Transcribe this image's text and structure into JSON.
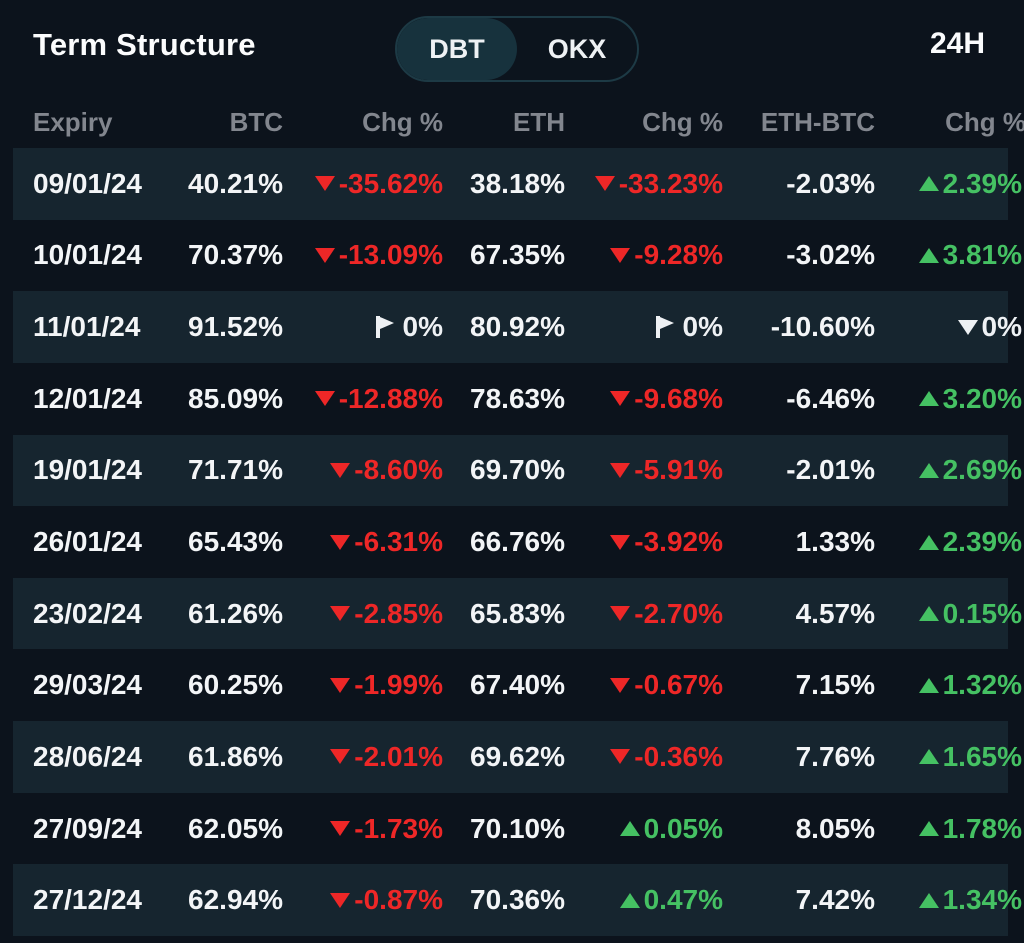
{
  "header": {
    "title": "Term Structure",
    "toggle": {
      "options": [
        "DBT",
        "OKX"
      ],
      "selected": "DBT"
    },
    "period": "24H"
  },
  "table": {
    "columns": [
      "Expiry",
      "BTC",
      "Chg %",
      "ETH",
      "Chg %",
      "ETH-BTC",
      "Chg %"
    ],
    "rows": [
      {
        "expiry": "09/01/24",
        "btc": "40.21%",
        "btc_chg": {
          "text": "-35.62%",
          "icon": "down",
          "tone": "red"
        },
        "eth": "38.18%",
        "eth_chg": {
          "text": "-33.23%",
          "icon": "down",
          "tone": "red"
        },
        "eth_btc": "-2.03%",
        "eth_btc_chg": {
          "text": "2.39%",
          "icon": "up",
          "tone": "green"
        }
      },
      {
        "expiry": "10/01/24",
        "btc": "70.37%",
        "btc_chg": {
          "text": "-13.09%",
          "icon": "down",
          "tone": "red"
        },
        "eth": "67.35%",
        "eth_chg": {
          "text": "-9.28%",
          "icon": "down",
          "tone": "red"
        },
        "eth_btc": "-3.02%",
        "eth_btc_chg": {
          "text": "3.81%",
          "icon": "up",
          "tone": "green"
        }
      },
      {
        "expiry": "11/01/24",
        "btc": "91.52%",
        "btc_chg": {
          "text": "0%",
          "icon": "flat",
          "tone": "white"
        },
        "eth": "80.92%",
        "eth_chg": {
          "text": "0%",
          "icon": "flat",
          "tone": "white"
        },
        "eth_btc": "-10.60%",
        "eth_btc_chg": {
          "text": "0%",
          "icon": "down",
          "tone": "white"
        }
      },
      {
        "expiry": "12/01/24",
        "btc": "85.09%",
        "btc_chg": {
          "text": "-12.88%",
          "icon": "down",
          "tone": "red"
        },
        "eth": "78.63%",
        "eth_chg": {
          "text": "-9.68%",
          "icon": "down",
          "tone": "red"
        },
        "eth_btc": "-6.46%",
        "eth_btc_chg": {
          "text": "3.20%",
          "icon": "up",
          "tone": "green"
        }
      },
      {
        "expiry": "19/01/24",
        "btc": "71.71%",
        "btc_chg": {
          "text": "-8.60%",
          "icon": "down",
          "tone": "red"
        },
        "eth": "69.70%",
        "eth_chg": {
          "text": "-5.91%",
          "icon": "down",
          "tone": "red"
        },
        "eth_btc": "-2.01%",
        "eth_btc_chg": {
          "text": "2.69%",
          "icon": "up",
          "tone": "green"
        }
      },
      {
        "expiry": "26/01/24",
        "btc": "65.43%",
        "btc_chg": {
          "text": "-6.31%",
          "icon": "down",
          "tone": "red"
        },
        "eth": "66.76%",
        "eth_chg": {
          "text": "-3.92%",
          "icon": "down",
          "tone": "red"
        },
        "eth_btc": "1.33%",
        "eth_btc_chg": {
          "text": "2.39%",
          "icon": "up",
          "tone": "green"
        }
      },
      {
        "expiry": "23/02/24",
        "btc": "61.26%",
        "btc_chg": {
          "text": "-2.85%",
          "icon": "down",
          "tone": "red"
        },
        "eth": "65.83%",
        "eth_chg": {
          "text": "-2.70%",
          "icon": "down",
          "tone": "red"
        },
        "eth_btc": "4.57%",
        "eth_btc_chg": {
          "text": "0.15%",
          "icon": "up",
          "tone": "green"
        }
      },
      {
        "expiry": "29/03/24",
        "btc": "60.25%",
        "btc_chg": {
          "text": "-1.99%",
          "icon": "down",
          "tone": "red"
        },
        "eth": "67.40%",
        "eth_chg": {
          "text": "-0.67%",
          "icon": "down",
          "tone": "red"
        },
        "eth_btc": "7.15%",
        "eth_btc_chg": {
          "text": "1.32%",
          "icon": "up",
          "tone": "green"
        }
      },
      {
        "expiry": "28/06/24",
        "btc": "61.86%",
        "btc_chg": {
          "text": "-2.01%",
          "icon": "down",
          "tone": "red"
        },
        "eth": "69.62%",
        "eth_chg": {
          "text": "-0.36%",
          "icon": "down",
          "tone": "red"
        },
        "eth_btc": "7.76%",
        "eth_btc_chg": {
          "text": "1.65%",
          "icon": "up",
          "tone": "green"
        }
      },
      {
        "expiry": "27/09/24",
        "btc": "62.05%",
        "btc_chg": {
          "text": "-1.73%",
          "icon": "down",
          "tone": "red"
        },
        "eth": "70.10%",
        "eth_chg": {
          "text": "0.05%",
          "icon": "up",
          "tone": "green"
        },
        "eth_btc": "8.05%",
        "eth_btc_chg": {
          "text": "1.78%",
          "icon": "up",
          "tone": "green"
        }
      },
      {
        "expiry": "27/12/24",
        "btc": "62.94%",
        "btc_chg": {
          "text": "-0.87%",
          "icon": "down",
          "tone": "red"
        },
        "eth": "70.36%",
        "eth_chg": {
          "text": "0.47%",
          "icon": "up",
          "tone": "green"
        },
        "eth_btc": "7.42%",
        "eth_btc_chg": {
          "text": "1.34%",
          "icon": "up",
          "tone": "green"
        }
      }
    ]
  },
  "colors": {
    "background": "#0c131c",
    "row_stripe": "#16252f",
    "up": "#45c163",
    "down": "#ee2727",
    "neutral_text": "#eef1f4",
    "muted_header": "#82868e",
    "toggle_selected": "#17323d",
    "toggle_border": "#1d3a45"
  },
  "icons": {
    "down": "triangle-down-icon",
    "up": "triangle-up-icon",
    "flat": "flat-flag-icon"
  }
}
